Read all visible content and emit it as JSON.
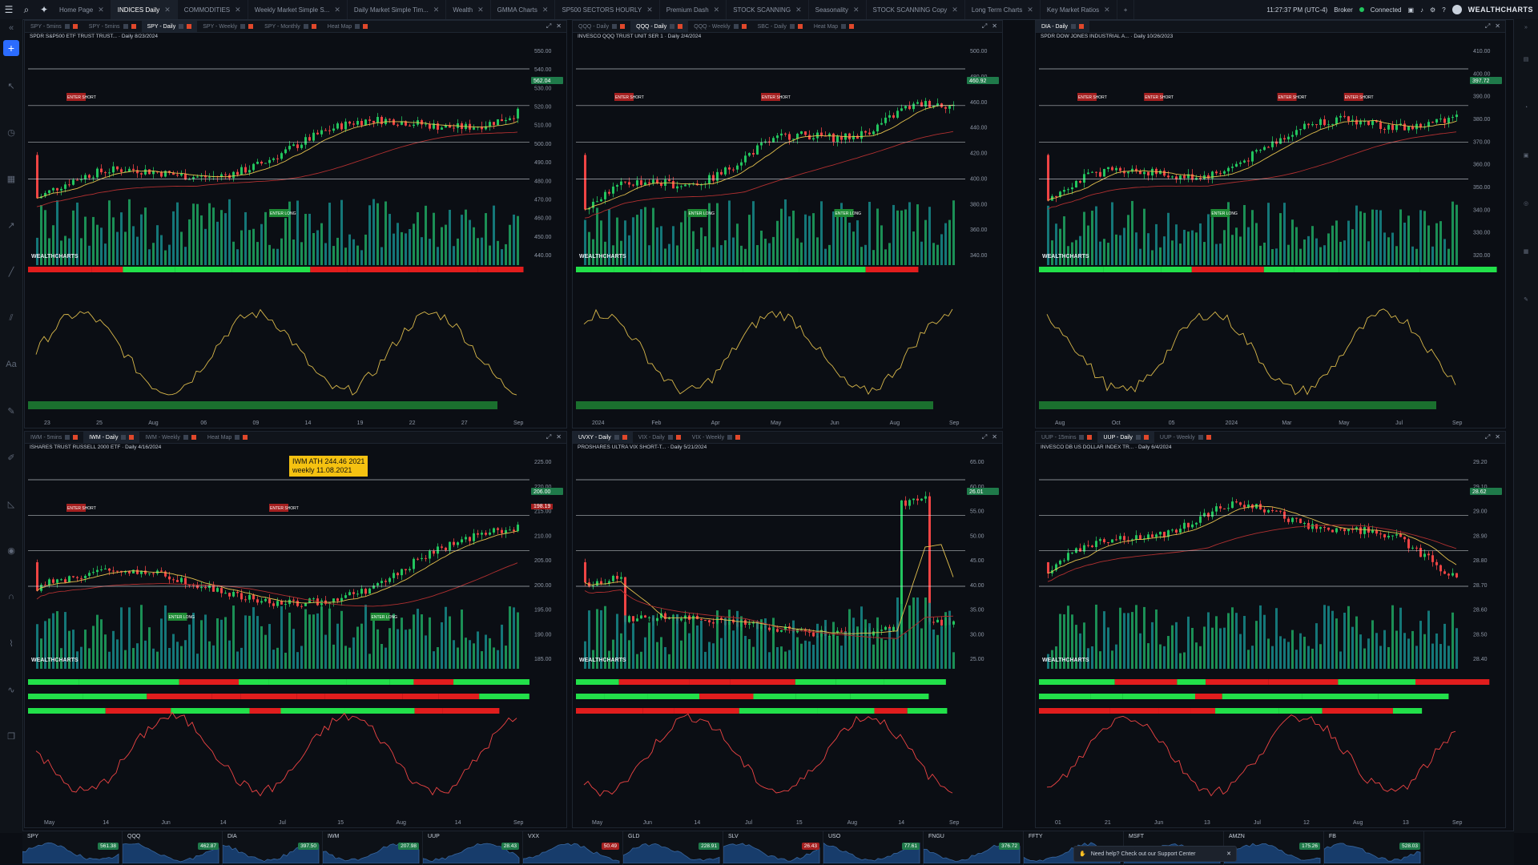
{
  "topbar": {
    "tabs": [
      {
        "label": "Home Page",
        "active": false
      },
      {
        "label": "INDICES Daily",
        "active": true
      },
      {
        "label": "COMMODITIES",
        "active": false
      },
      {
        "label": "Weekly Market Simple S...",
        "active": false
      },
      {
        "label": "Daily Market Simple Tim...",
        "active": false
      },
      {
        "label": "Wealth",
        "active": false
      },
      {
        "label": "GMMA Charts",
        "active": false
      },
      {
        "label": "SP500 SECTORS HOURLY",
        "active": false
      },
      {
        "label": "Premium Dash",
        "active": false
      },
      {
        "label": "STOCK SCANNING",
        "active": false
      },
      {
        "label": "Seasonality",
        "active": false
      },
      {
        "label": "STOCK SCANNING Copy",
        "active": false
      },
      {
        "label": "Long Term Charts",
        "active": false
      },
      {
        "label": "Key Market Ratios",
        "active": false
      }
    ],
    "add_tab": "+",
    "clock": "11:27:37 PM (UTC-4)",
    "broker": "Broker",
    "connected": "Connected",
    "brand": "WEALTHCHARTS"
  },
  "panels": [
    {
      "id": "spy",
      "tabs": [
        "SPY - 5mins",
        "SPY - 5mins",
        "SPY - Daily",
        "SPY - Weekly",
        "SPY - Monthly",
        "Heat Map"
      ],
      "active_tab": 2,
      "title": "SPDR S&P500 ETF TRUST TRUST... · Daily 8/23/2024",
      "price_badge": "562.04",
      "y_labels": [
        "550.00",
        "540.00",
        "530.00",
        "520.00",
        "510.00",
        "500.00",
        "490.00",
        "480.00",
        "470.00",
        "460.00",
        "450.00",
        "440.00"
      ],
      "x_labels": [
        "23",
        "25",
        "Aug",
        "06",
        "09",
        "14",
        "19",
        "22",
        "27",
        "Sep"
      ],
      "signals": [
        "ENTER SHORT",
        "ENTER LONG"
      ]
    },
    {
      "id": "qqq",
      "tabs": [
        "QQQ - Daily",
        "QQQ - Daily",
        "QQQ - Weekly",
        "SBC - Daily",
        "Heat Map"
      ],
      "active_tab": 1,
      "title": "INVESCO QQQ TRUST UNIT SER 1 · Daily 2/4/2024",
      "price_badge": "460.92",
      "y_labels": [
        "500.00",
        "480.00",
        "460.00",
        "440.00",
        "420.00",
        "400.00",
        "380.00",
        "360.00",
        "340.00"
      ],
      "x_labels": [
        "2024",
        "Feb",
        "Apr",
        "May",
        "Jun",
        "Aug",
        "Sep"
      ],
      "signals": [
        "ENTER SHORT",
        "ENTER LONG",
        "ENTER SHORT",
        "ENTER LONG"
      ]
    },
    {
      "id": "dia",
      "tabs": [
        "DIA - Daily"
      ],
      "active_tab": 0,
      "title": "SPDR DOW JONES INDUSTRIAL A... · Daily 10/26/2023",
      "price_badge": "397.72",
      "y_labels": [
        "410.00",
        "400.00",
        "390.00",
        "380.00",
        "370.00",
        "360.00",
        "350.00",
        "340.00",
        "330.00",
        "320.00"
      ],
      "x_labels": [
        "Aug",
        "Oct",
        "05",
        "2024",
        "Mar",
        "May",
        "Jul",
        "Sep"
      ],
      "signals": [
        "ENTER SHORT",
        "ENTER SHORT",
        "ENTER LONG",
        "ENTER SHORT",
        "ENTER SHORT"
      ]
    },
    {
      "id": "iwm",
      "tabs": [
        "IWM - 5mins",
        "IWM - Daily",
        "IWM - Weekly",
        "Heat Map"
      ],
      "active_tab": 1,
      "title": "ISHARES TRUST RUSSELL 2000 ETF · Daily 4/16/2024",
      "price_badge": "206.00",
      "badge2": "198.19",
      "annotation": [
        "IWM ATH 244.46 2021",
        "weekly 11.08.2021"
      ],
      "y_labels": [
        "225.00",
        "220.00",
        "215.00",
        "210.00",
        "205.00",
        "200.00",
        "195.00",
        "190.00",
        "185.00"
      ],
      "x_labels": [
        "May",
        "14",
        "Jun",
        "14",
        "Jul",
        "15",
        "Aug",
        "14",
        "Sep"
      ],
      "signals": [
        "ENTER SHORT",
        "ENTER LONG",
        "ENTER SHORT",
        "ENTER LONG"
      ]
    },
    {
      "id": "uvxy",
      "tabs": [
        "UVXY - Daily",
        "VIX - Daily",
        "VIX - Weekly"
      ],
      "active_tab": 0,
      "title": "PROSHARES ULTRA VIX SHORT-T... · Daily 5/21/2024",
      "price_badge": "26.01",
      "y_labels": [
        "65.00",
        "60.00",
        "55.00",
        "50.00",
        "45.00",
        "40.00",
        "35.00",
        "30.00",
        "25.00"
      ],
      "x_labels": [
        "May",
        "Jun",
        "14",
        "Jul",
        "15",
        "Aug",
        "14",
        "Sep"
      ],
      "signals": []
    },
    {
      "id": "uup",
      "tabs": [
        "UUP - 15mins",
        "UUP - Daily",
        "UUP - Weekly"
      ],
      "active_tab": 1,
      "title": "INVESCO DB US DOLLAR INDEX TR... · Daily 6/4/2024",
      "price_badge": "28.62",
      "y_labels": [
        "29.20",
        "29.10",
        "29.00",
        "28.90",
        "28.80",
        "28.70",
        "28.60",
        "28.50",
        "28.40"
      ],
      "x_labels": [
        "01",
        "21",
        "Jun",
        "13",
        "Jul",
        "12",
        "Aug",
        "13",
        "Sep"
      ],
      "signals": []
    }
  ],
  "ticker_strip": [
    {
      "sym": "SPY",
      "px": "561.38",
      "up": true
    },
    {
      "sym": "QQQ",
      "px": "462.87",
      "up": true
    },
    {
      "sym": "DIA",
      "px": "397.50",
      "up": true
    },
    {
      "sym": "IWM",
      "px": "207.98",
      "up": true
    },
    {
      "sym": "UUP",
      "px": "28.43",
      "up": true
    },
    {
      "sym": "VXX",
      "px": "50.49",
      "up": false
    },
    {
      "sym": "GLD",
      "px": "228.91",
      "up": true
    },
    {
      "sym": "SLV",
      "px": "26.43",
      "up": false
    },
    {
      "sym": "USO",
      "px": "77.61",
      "up": true
    },
    {
      "sym": "FNGU",
      "px": "376.72",
      "up": true
    },
    {
      "sym": "FFTY",
      "px": "",
      "up": true
    },
    {
      "sym": "MSFT",
      "px": "",
      "up": true
    },
    {
      "sym": "AMZN",
      "px": "175.26",
      "up": true
    },
    {
      "sym": "FB",
      "px": "528.03",
      "up": true
    }
  ],
  "toast": {
    "text": "Need help? Check out our Support Center",
    "close": "✕"
  },
  "branding": "WEALTHCHARTS",
  "colors": {
    "up": "#22c55e",
    "down": "#ef4444",
    "sma": "#e3c04d",
    "accent": "#2b6cff"
  }
}
